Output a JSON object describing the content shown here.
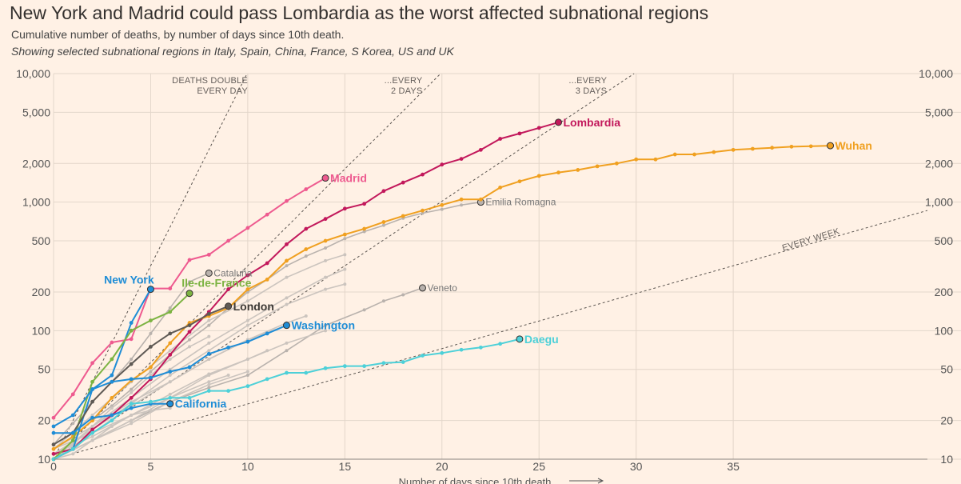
{
  "title": "New York and Madrid could pass Lombardia as the worst affected subnational regions",
  "subtitle": "Cumulative number of deaths, by number of days since 10th death.",
  "subtitle2": "Showing selected subnational regions in Italy, Spain, China, France, S Korea, US and UK",
  "chart_data": {
    "type": "line",
    "title": "New York and Madrid could pass Lombardia as the worst affected subnational regions",
    "xlabel": "Number of days since 10th death",
    "ylabel": "",
    "yscale": "log",
    "xlim": [
      0,
      45
    ],
    "ylim": [
      10,
      10000
    ],
    "x_ticks": [
      0,
      5,
      10,
      15,
      20,
      25,
      30,
      35
    ],
    "y_ticks": [
      10,
      20,
      50,
      100,
      200,
      500,
      1000,
      2000,
      5000,
      10000
    ],
    "y_tick_labels": [
      "10",
      "20",
      "50",
      "100",
      "200",
      "500",
      "1,000",
      "2,000",
      "5,000",
      "10,000"
    ],
    "grid": true,
    "reference_lines": [
      {
        "label_lines": [
          "DEATHS DOUBLE",
          "EVERY DAY"
        ],
        "doubling_days": 1
      },
      {
        "label_lines": [
          "...EVERY",
          "2 DAYS"
        ],
        "doubling_days": 2
      },
      {
        "label_lines": [
          "...EVERY",
          "3 DAYS"
        ],
        "doubling_days": 3
      },
      {
        "label_lines": [
          "EVERY WEEK"
        ],
        "doubling_days": 7
      }
    ],
    "series": [
      {
        "name": "Lombardia",
        "color": "#c2185b",
        "highlight": true,
        "x": [
          0,
          1,
          2,
          3,
          4,
          5,
          6,
          7,
          8,
          9,
          10,
          11,
          12,
          13,
          14,
          15,
          16,
          17,
          18,
          19,
          20,
          21,
          22,
          23,
          24,
          25,
          26
        ],
        "values": [
          11,
          12,
          17,
          22,
          30,
          42,
          65,
          98,
          140,
          210,
          270,
          335,
          470,
          620,
          740,
          890,
          970,
          1220,
          1420,
          1640,
          1960,
          2170,
          2550,
          3110,
          3420,
          3780,
          4180
        ]
      },
      {
        "name": "Wuhan",
        "color": "#f0a020",
        "highlight": true,
        "x": [
          0,
          1,
          2,
          3,
          4,
          5,
          6,
          7,
          8,
          9,
          10,
          11,
          12,
          13,
          14,
          15,
          16,
          17,
          18,
          19,
          20,
          21,
          22,
          23,
          24,
          25,
          26,
          27,
          28,
          29,
          30,
          31,
          32,
          33,
          34,
          35,
          36,
          37,
          38,
          39,
          40
        ],
        "values": [
          12,
          15,
          20,
          30,
          41,
          52,
          80,
          115,
          130,
          150,
          210,
          250,
          350,
          430,
          500,
          560,
          620,
          700,
          780,
          860,
          950,
          1050,
          1050,
          1300,
          1450,
          1600,
          1700,
          1780,
          1900,
          2000,
          2150,
          2150,
          2350,
          2350,
          2450,
          2550,
          2600,
          2650,
          2700,
          2720,
          2750
        ]
      },
      {
        "name": "Madrid",
        "color": "#ee5a8f",
        "highlight": true,
        "x": [
          0,
          1,
          2,
          3,
          4,
          5,
          6,
          7,
          8,
          9,
          10,
          11,
          12,
          13,
          14
        ],
        "values": [
          21,
          32,
          56,
          81,
          86,
          213,
          213,
          355,
          390,
          500,
          630,
          800,
          1020,
          1260,
          1540
        ]
      },
      {
        "name": "New York",
        "color": "#1f8dd6",
        "highlight": true,
        "x": [
          0,
          1,
          2,
          3,
          4,
          5
        ],
        "values": [
          10,
          12,
          35,
          45,
          115,
          210
        ]
      },
      {
        "name": "Ile-de-France",
        "color": "#7cb342",
        "highlight": true,
        "x": [
          0,
          1,
          2,
          3,
          4,
          5,
          6,
          7
        ],
        "values": [
          10,
          14,
          40,
          60,
          100,
          120,
          140,
          195
        ]
      },
      {
        "name": "London",
        "color": "#5f5a55",
        "highlight": true,
        "x": [
          0,
          1,
          2,
          3,
          4,
          5,
          6,
          7,
          8,
          9
        ],
        "values": [
          13,
          16,
          28,
          40,
          55,
          75,
          95,
          110,
          135,
          155
        ]
      },
      {
        "name": "Washington",
        "color": "#1f8dd6",
        "highlight": true,
        "x": [
          0,
          1,
          2,
          3,
          4,
          5,
          6,
          7,
          8,
          9,
          10,
          11,
          12
        ],
        "values": [
          18,
          22,
          35,
          40,
          42,
          43,
          48,
          52,
          66,
          74,
          82,
          95,
          110
        ]
      },
      {
        "name": "California",
        "color": "#1f8dd6",
        "highlight": true,
        "x": [
          0,
          1,
          2,
          3,
          4,
          5,
          6
        ],
        "values": [
          16,
          16,
          21,
          22,
          25,
          27,
          27
        ]
      },
      {
        "name": "Daegu",
        "color": "#4dd0d8",
        "highlight": true,
        "x": [
          0,
          1,
          2,
          3,
          4,
          5,
          6,
          7,
          8,
          9,
          10,
          11,
          12,
          13,
          14,
          15,
          16,
          17,
          18,
          19,
          20,
          21,
          22,
          23,
          24
        ],
        "values": [
          10,
          12,
          16,
          20,
          27,
          28,
          30,
          30,
          34,
          34,
          37,
          42,
          47,
          47,
          51,
          53,
          53,
          56,
          57,
          64,
          67,
          71,
          74,
          79,
          86
        ]
      },
      {
        "name": "Cataluña",
        "color": "#b9b2ad",
        "highlight": false,
        "x": [
          0,
          1,
          2,
          3,
          4,
          5,
          6,
          7,
          8
        ],
        "values": [
          13,
          19,
          28,
          40,
          60,
          95,
          150,
          240,
          280
        ]
      },
      {
        "name": "Emilia Romagna",
        "color": "#b9b2ad",
        "highlight": false,
        "x": [
          0,
          1,
          2,
          3,
          4,
          5,
          6,
          7,
          8,
          9,
          10,
          11,
          12,
          13,
          14,
          15,
          16,
          17,
          18,
          19,
          20,
          21,
          22
        ],
        "values": [
          12,
          15,
          20,
          26,
          35,
          48,
          65,
          85,
          110,
          150,
          200,
          250,
          320,
          380,
          440,
          520,
          590,
          660,
          750,
          820,
          880,
          950,
          1000
        ]
      },
      {
        "name": "Veneto",
        "color": "#b9b2ad",
        "highlight": false,
        "x": [
          0,
          2,
          4,
          6,
          8,
          10,
          12,
          14,
          16,
          17,
          18,
          19
        ],
        "values": [
          10,
          14,
          20,
          28,
          36,
          45,
          70,
          110,
          145,
          170,
          190,
          215
        ]
      },
      {
        "name": "",
        "color": "#cbc4be",
        "highlight": false,
        "x": [
          0,
          2,
          4,
          6,
          8,
          10,
          12,
          14,
          15
        ],
        "values": [
          12,
          22,
          40,
          70,
          120,
          170,
          260,
          350,
          390
        ]
      },
      {
        "name": "",
        "color": "#cbc4be",
        "highlight": false,
        "x": [
          0,
          2,
          4,
          6,
          8,
          10,
          12,
          14,
          15
        ],
        "values": [
          10,
          18,
          30,
          50,
          80,
          120,
          180,
          260,
          300
        ]
      },
      {
        "name": "",
        "color": "#cbc4be",
        "highlight": false,
        "x": [
          0,
          2,
          4,
          6,
          8,
          10,
          12,
          14,
          15
        ],
        "values": [
          11,
          17,
          27,
          45,
          70,
          110,
          160,
          210,
          230
        ]
      },
      {
        "name": "",
        "color": "#cbc4be",
        "highlight": false,
        "x": [
          0,
          2,
          4,
          6,
          8,
          10,
          12,
          13
        ],
        "values": [
          12,
          18,
          28,
          40,
          60,
          85,
          115,
          130
        ]
      },
      {
        "name": "",
        "color": "#cbc4be",
        "highlight": false,
        "x": [
          0,
          2,
          4,
          6,
          8,
          10,
          12,
          14
        ],
        "values": [
          10,
          14,
          20,
          30,
          45,
          60,
          80,
          100
        ]
      },
      {
        "name": "",
        "color": "#cbc4be",
        "highlight": false,
        "x": [
          0,
          2,
          4,
          6,
          8,
          10,
          11
        ],
        "values": [
          11,
          15,
          22,
          32,
          46,
          60,
          70
        ]
      },
      {
        "name": "",
        "color": "#cbc4be",
        "highlight": false,
        "x": [
          0,
          2,
          4,
          6,
          8,
          10
        ],
        "values": [
          10,
          14,
          19,
          28,
          38,
          48
        ]
      },
      {
        "name": "",
        "color": "#cbc4be",
        "highlight": false,
        "x": [
          0,
          2,
          4,
          6,
          8,
          9
        ],
        "values": [
          12,
          16,
          22,
          30,
          40,
          45
        ]
      },
      {
        "name": "",
        "color": "#cbc4be",
        "highlight": false,
        "x": [
          0,
          1,
          2,
          3,
          4,
          5,
          6
        ],
        "values": [
          10,
          11,
          14,
          18,
          22,
          24,
          25
        ]
      },
      {
        "name": "",
        "color": "#cbc4be",
        "highlight": false,
        "x": [
          0,
          2,
          4,
          6,
          8,
          10,
          12
        ],
        "values": [
          10,
          16,
          26,
          40,
          60,
          85,
          110
        ]
      },
      {
        "name": "",
        "color": "#cbc4be",
        "highlight": false,
        "x": [
          0,
          1,
          2,
          3,
          4,
          5,
          6,
          7,
          8
        ],
        "values": [
          11,
          13,
          18,
          25,
          33,
          45,
          60,
          75,
          90
        ]
      }
    ]
  }
}
